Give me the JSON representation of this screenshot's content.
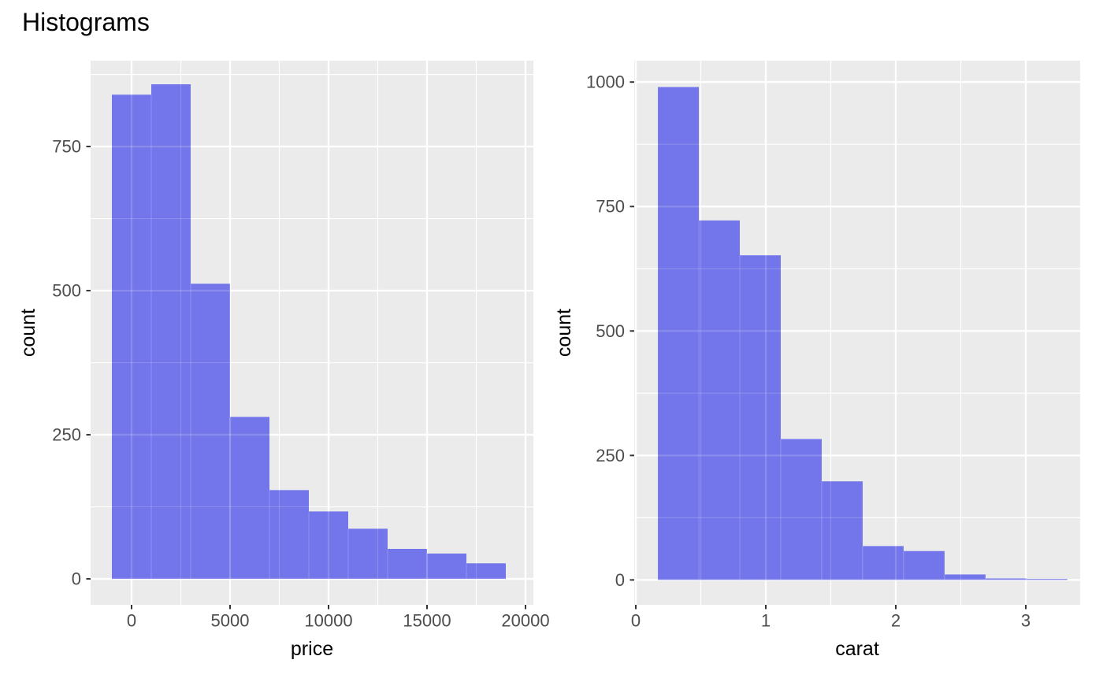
{
  "title": "Histograms",
  "colors": {
    "background": "#FFFFFF",
    "panel_bg": "#EBEBEB",
    "grid": "#FFFFFF",
    "bar_fill": "#7376EA",
    "bar_seam": "rgba(255,255,255,0.20)",
    "grid_overlay_on_bars": "rgba(255,255,255,0.16)",
    "axis_text": "#4D4D4D",
    "axis_title": "#000000",
    "tick_mark": "#333333"
  },
  "chart_data": [
    {
      "type": "bar",
      "subtype": "histogram",
      "title": "",
      "xlabel": "price",
      "ylabel": "count",
      "bin_start": -1000,
      "bin_width": 2000,
      "values": [
        840,
        858,
        512,
        281,
        154,
        117,
        87,
        52,
        44,
        27
      ],
      "x_ticks": [
        0,
        5000,
        10000,
        15000,
        20000
      ],
      "x_tick_labels": [
        "0",
        "5000",
        "10000",
        "15000",
        "20000"
      ],
      "x_minor_ticks": [
        2500,
        7500,
        12500,
        17500
      ],
      "y_ticks": [
        0,
        250,
        500,
        750
      ],
      "y_tick_labels": [
        "0",
        "250",
        "500",
        "750"
      ],
      "y_minor_ticks": [
        125,
        375,
        625,
        875
      ],
      "xlim": [
        -2080,
        20400
      ],
      "ylim": [
        -45,
        899
      ],
      "grid": true,
      "legend": "none"
    },
    {
      "type": "bar",
      "subtype": "histogram",
      "title": "",
      "xlabel": "carat",
      "ylabel": "count",
      "bin_start": 0.17,
      "bin_width": 0.315,
      "values": [
        990,
        722,
        652,
        283,
        198,
        68,
        58,
        11,
        3,
        2
      ],
      "x_ticks": [
        0,
        1,
        2,
        3
      ],
      "x_tick_labels": [
        "0",
        "1",
        "2",
        "3"
      ],
      "x_minor_ticks": [
        0.5,
        1.5,
        2.5
      ],
      "y_ticks": [
        0,
        250,
        500,
        750,
        1000
      ],
      "y_tick_labels": [
        "0",
        "250",
        "500",
        "750",
        "1000"
      ],
      "y_minor_ticks": [
        125,
        375,
        625,
        875
      ],
      "xlim": [
        -0.012,
        3.418
      ],
      "ylim": [
        -50,
        1043
      ],
      "grid": true,
      "legend": "none"
    }
  ]
}
